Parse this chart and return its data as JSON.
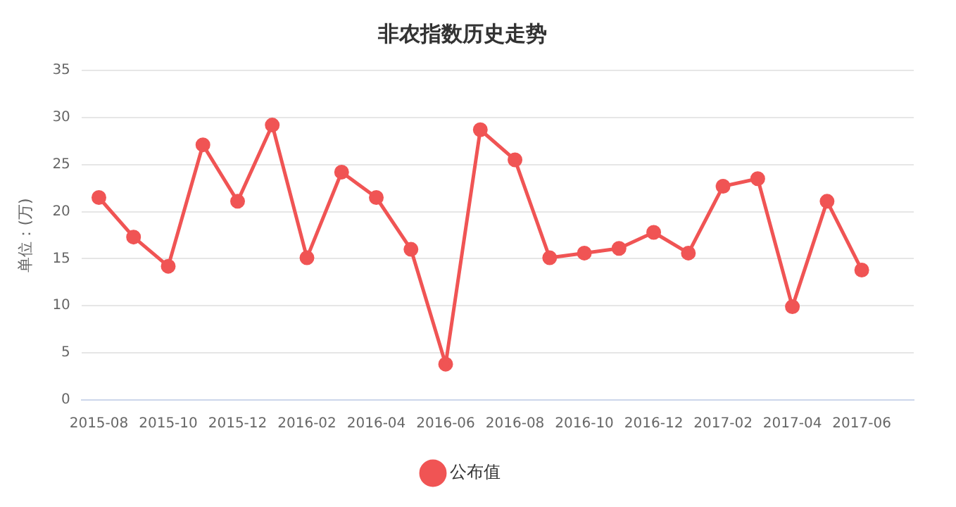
{
  "chart_data": {
    "type": "line",
    "title": "非农指数历史走势",
    "ylabel": "单位：(万)",
    "categories": [
      "2015-08",
      null,
      "2015-10",
      null,
      "2015-12",
      null,
      "2016-02",
      null,
      "2016-04",
      null,
      "2016-06",
      null,
      "2016-08",
      null,
      "2016-10",
      null,
      "2016-12",
      null,
      "2017-02",
      null,
      "2017-04",
      null,
      "2017-06",
      null
    ],
    "series": [
      {
        "name": "公布值",
        "color": "#f05454",
        "values": [
          21.5,
          17.3,
          14.2,
          27.1,
          21.1,
          29.2,
          15.1,
          24.2,
          21.5,
          16.0,
          3.8,
          28.7,
          25.5,
          15.1,
          15.6,
          16.1,
          17.8,
          15.6,
          22.7,
          23.5,
          9.9,
          21.1,
          13.8,
          null
        ]
      }
    ],
    "ylim": [
      0,
      35
    ],
    "yticks": [
      0,
      5,
      10,
      15,
      20,
      25,
      30,
      35
    ],
    "grid": "y",
    "legend": "bottom",
    "marker": "circle",
    "line_style": "solid"
  }
}
